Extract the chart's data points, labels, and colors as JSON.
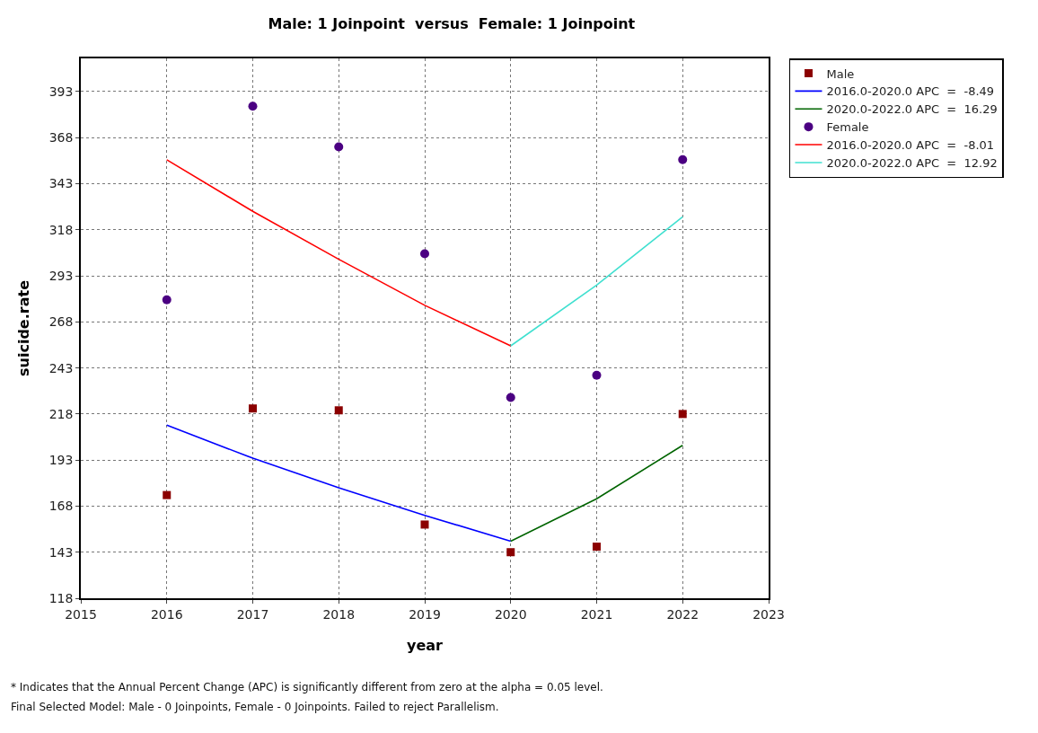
{
  "chart_data": {
    "type": "scatter",
    "title": "Male: 1 Joinpoint  versus  Female: 1 Joinpoint",
    "xlabel": "year",
    "ylabel": "suicide.rate",
    "series": [
      {
        "name": "Male",
        "type": "scatter",
        "marker": "square",
        "color": "#8b0000",
        "x": [
          2016,
          2017,
          2018,
          2019,
          2020,
          2021,
          2022
        ],
        "values": [
          174,
          221,
          220,
          158,
          143,
          146,
          218
        ]
      },
      {
        "name": "2016.0-2020.0 APC  =  -8.49",
        "type": "line",
        "marker": "none",
        "color": "#0000ff",
        "x": [
          2016,
          2017,
          2018,
          2019,
          2020
        ],
        "values": [
          212,
          194,
          178,
          163,
          149
        ]
      },
      {
        "name": "2020.0-2022.0 APC  =  16.29",
        "type": "line",
        "marker": "none",
        "color": "#006400",
        "x": [
          2020,
          2021,
          2022
        ],
        "values": [
          149,
          172,
          201
        ]
      },
      {
        "name": "Female",
        "type": "scatter",
        "marker": "circle",
        "color": "#4b0082",
        "x": [
          2016,
          2017,
          2018,
          2019,
          2020,
          2021,
          2022
        ],
        "values": [
          280,
          385,
          363,
          305,
          227,
          239,
          356
        ]
      },
      {
        "name": "2016.0-2020.0 APC  =  -8.01",
        "type": "line",
        "marker": "none",
        "color": "#ff0000",
        "x": [
          2016,
          2017,
          2018,
          2019,
          2020
        ],
        "values": [
          356,
          328,
          302,
          277,
          255
        ]
      },
      {
        "name": "2020.0-2022.0 APC  =  12.92",
        "type": "line",
        "marker": "none",
        "color": "#40e0d0",
        "x": [
          2020,
          2021,
          2022
        ],
        "values": [
          255,
          288,
          325
        ]
      }
    ],
    "xlim": [
      2015,
      2023
    ],
    "xticks": [
      2015,
      2016,
      2017,
      2018,
      2019,
      2020,
      2021,
      2022,
      2023
    ],
    "ylim": [
      118,
      411
    ],
    "yticks": [
      118,
      143,
      168,
      193,
      218,
      243,
      268,
      293,
      318,
      343,
      368,
      393
    ],
    "grid": true,
    "legend": "top right",
    "line_style": "solid",
    "annotations": [
      "* Indicates that the Annual Percent Change (APC) is significantly different from zero at the alpha = 0.05 level.",
      "Final Selected Model: Male - 0 Joinpoints, Female - 0 Joinpoints. Failed to reject Parallelism."
    ]
  }
}
